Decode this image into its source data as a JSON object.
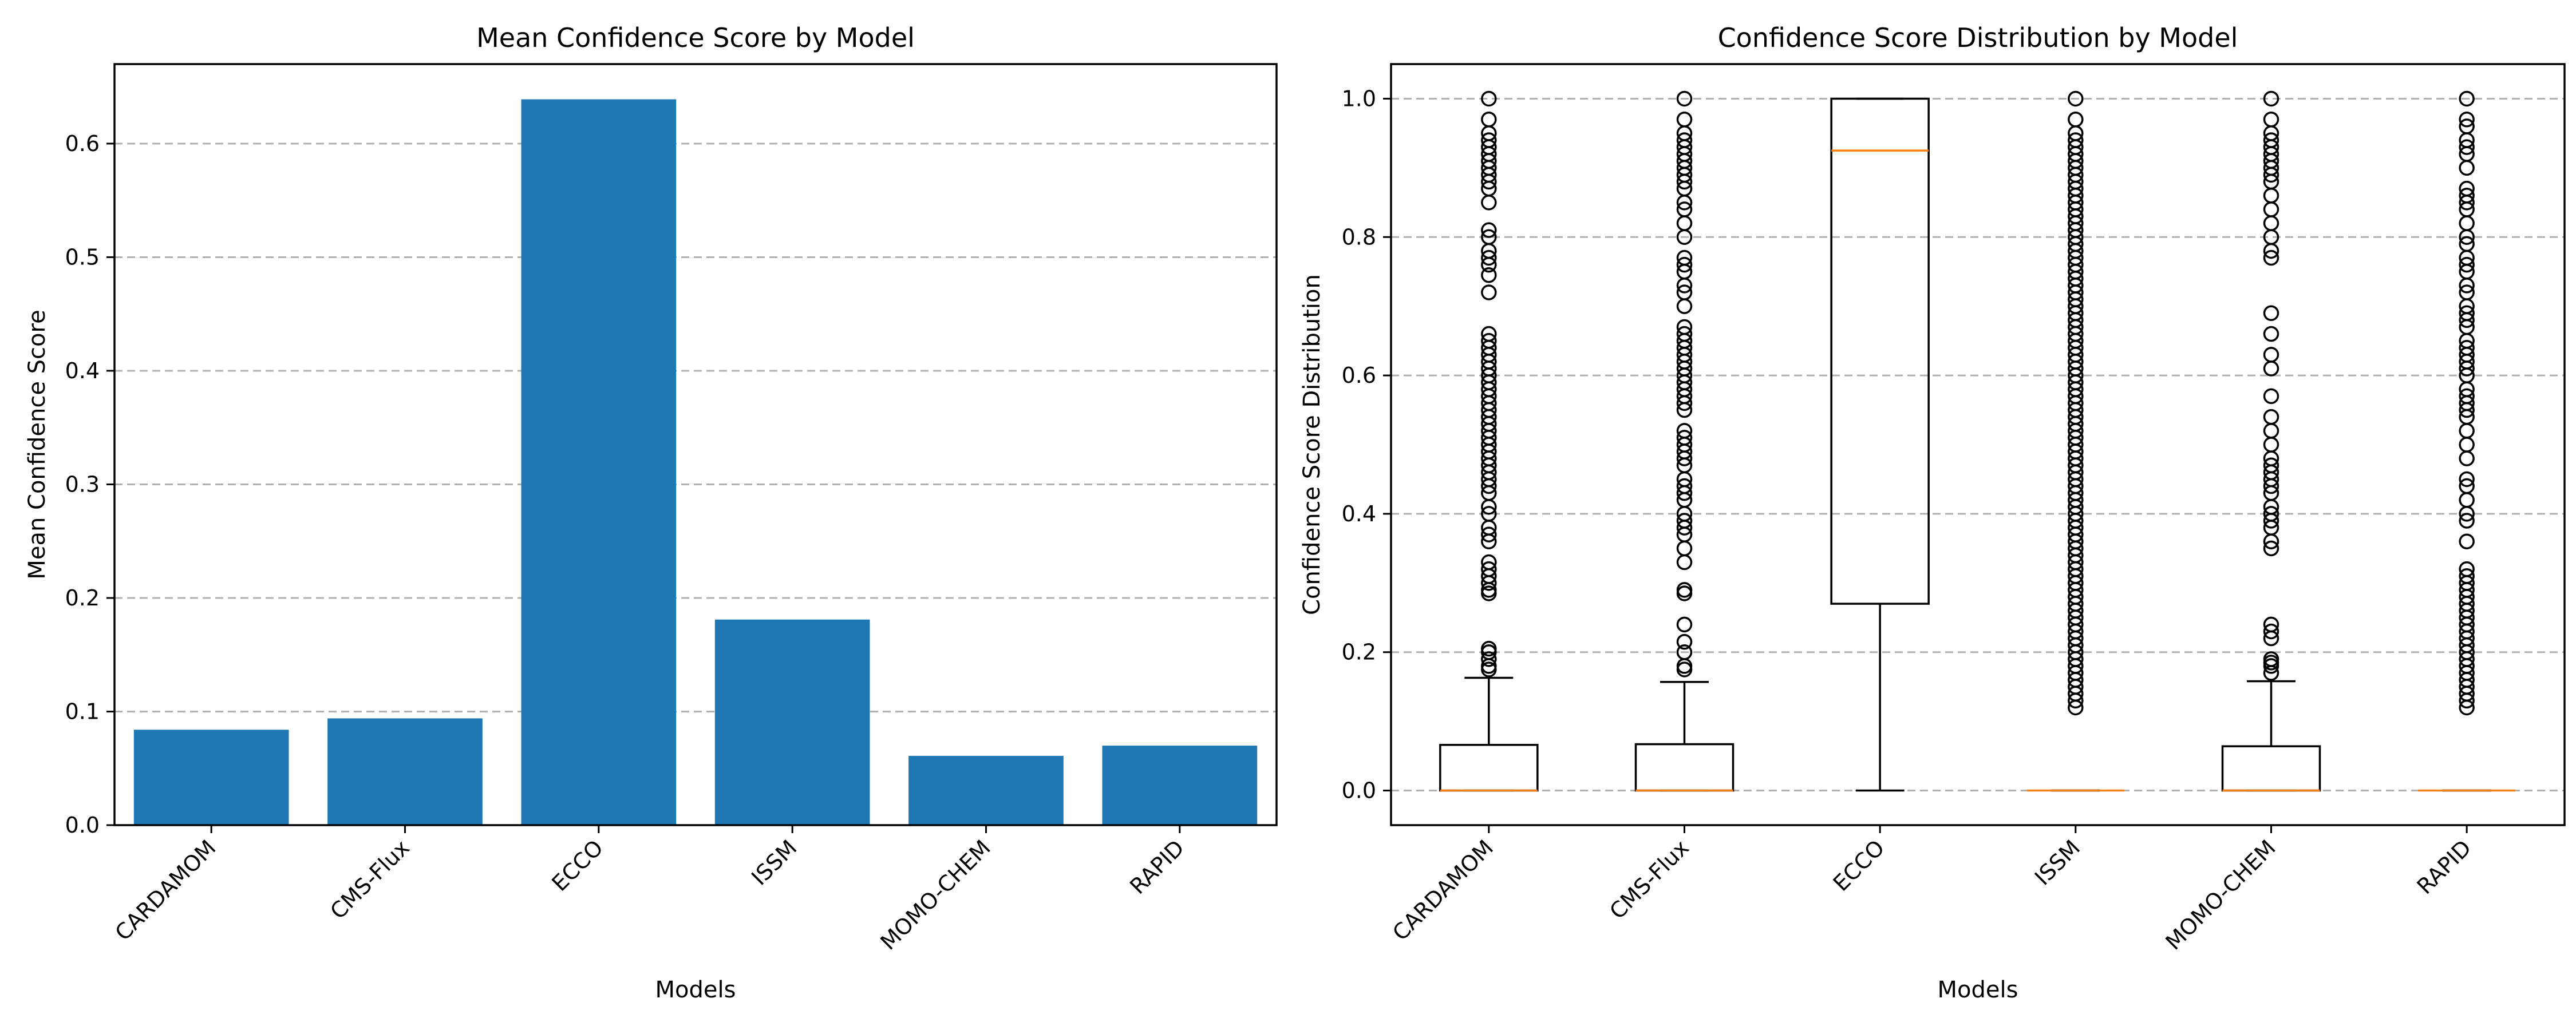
{
  "chart_data": [
    {
      "type": "bar",
      "title": "Mean Confidence Score by Model",
      "xlabel": "Models",
      "ylabel": "Mean Confidence Score",
      "categories": [
        "CARDAMOM",
        "CMS-Flux",
        "ECCO",
        "ISSM",
        "MOMO-CHEM",
        "RAPID"
      ],
      "values": [
        0.084,
        0.094,
        0.639,
        0.181,
        0.061,
        0.07
      ],
      "ylim": [
        0,
        0.67
      ],
      "yticks": [
        "0.0",
        "0.1",
        "0.2",
        "0.3",
        "0.4",
        "0.5",
        "0.6"
      ],
      "grid": "y-dashed",
      "bar_color": "#1f77b4"
    },
    {
      "type": "box",
      "title": "Confidence Score Distribution by Model",
      "xlabel": "Models",
      "ylabel": "Confidence Score Distribution",
      "categories": [
        "CARDAMOM",
        "CMS-Flux",
        "ECCO",
        "ISSM",
        "MOMO-CHEM",
        "RAPID"
      ],
      "ylim": [
        -0.05,
        1.05
      ],
      "yticks": [
        "0.0",
        "0.2",
        "0.4",
        "0.6",
        "0.8",
        "1.0"
      ],
      "grid": "y-dashed",
      "median_color": "#ff7f0e",
      "boxes": [
        {
          "q1": 0,
          "median": 0,
          "q3": 0.066,
          "whisker_low": 0,
          "whisker_high": 0.163,
          "outliers": [
            0.175,
            0.18,
            0.19,
            0.2,
            0.205,
            0.285,
            0.29,
            0.3,
            0.31,
            0.32,
            0.33,
            0.36,
            0.37,
            0.38,
            0.4,
            0.41,
            0.43,
            0.44,
            0.45,
            0.46,
            0.47,
            0.48,
            0.49,
            0.5,
            0.51,
            0.52,
            0.53,
            0.54,
            0.55,
            0.56,
            0.57,
            0.58,
            0.59,
            0.6,
            0.61,
            0.62,
            0.63,
            0.64,
            0.65,
            0.66,
            0.72,
            0.745,
            0.76,
            0.77,
            0.78,
            0.8,
            0.81,
            0.85,
            0.87,
            0.88,
            0.89,
            0.9,
            0.91,
            0.92,
            0.93,
            0.94,
            0.95,
            0.97,
            1.0
          ]
        },
        {
          "q1": 0,
          "median": 0,
          "q3": 0.067,
          "whisker_low": 0,
          "whisker_high": 0.157,
          "outliers": [
            0.175,
            0.18,
            0.2,
            0.215,
            0.24,
            0.285,
            0.29,
            0.33,
            0.35,
            0.37,
            0.38,
            0.39,
            0.4,
            0.42,
            0.43,
            0.44,
            0.45,
            0.47,
            0.48,
            0.49,
            0.5,
            0.51,
            0.52,
            0.55,
            0.56,
            0.57,
            0.58,
            0.59,
            0.6,
            0.61,
            0.62,
            0.63,
            0.64,
            0.65,
            0.66,
            0.67,
            0.7,
            0.72,
            0.73,
            0.75,
            0.76,
            0.77,
            0.8,
            0.82,
            0.84,
            0.85,
            0.87,
            0.88,
            0.89,
            0.9,
            0.91,
            0.92,
            0.93,
            0.94,
            0.95,
            0.97,
            1.0
          ]
        },
        {
          "q1": 0.27,
          "median": 0.925,
          "q3": 1.0,
          "whisker_low": 0,
          "whisker_high": 1.0,
          "outliers": []
        },
        {
          "q1": 0,
          "median": 0,
          "q3": 0,
          "whisker_low": 0,
          "whisker_high": 0,
          "outliers": [
            0.12,
            0.13,
            0.14,
            0.15,
            0.16,
            0.17,
            0.18,
            0.19,
            0.2,
            0.21,
            0.22,
            0.23,
            0.24,
            0.25,
            0.26,
            0.27,
            0.28,
            0.29,
            0.3,
            0.31,
            0.32,
            0.33,
            0.34,
            0.35,
            0.36,
            0.37,
            0.38,
            0.39,
            0.4,
            0.41,
            0.42,
            0.43,
            0.44,
            0.45,
            0.46,
            0.47,
            0.48,
            0.49,
            0.5,
            0.51,
            0.52,
            0.53,
            0.54,
            0.55,
            0.56,
            0.57,
            0.58,
            0.59,
            0.6,
            0.61,
            0.62,
            0.63,
            0.64,
            0.65,
            0.66,
            0.67,
            0.68,
            0.69,
            0.7,
            0.71,
            0.72,
            0.73,
            0.74,
            0.75,
            0.76,
            0.77,
            0.78,
            0.79,
            0.8,
            0.81,
            0.82,
            0.83,
            0.84,
            0.85,
            0.86,
            0.87,
            0.88,
            0.89,
            0.9,
            0.91,
            0.92,
            0.93,
            0.94,
            0.95,
            0.97,
            1.0
          ]
        },
        {
          "q1": 0,
          "median": 0,
          "q3": 0.064,
          "whisker_low": 0,
          "whisker_high": 0.158,
          "outliers": [
            0.17,
            0.18,
            0.185,
            0.19,
            0.22,
            0.23,
            0.24,
            0.35,
            0.36,
            0.38,
            0.39,
            0.4,
            0.41,
            0.43,
            0.44,
            0.45,
            0.46,
            0.47,
            0.48,
            0.5,
            0.52,
            0.54,
            0.57,
            0.61,
            0.63,
            0.66,
            0.69,
            0.77,
            0.78,
            0.8,
            0.82,
            0.84,
            0.86,
            0.88,
            0.89,
            0.9,
            0.91,
            0.92,
            0.93,
            0.94,
            0.95,
            0.97,
            1.0
          ]
        },
        {
          "q1": 0,
          "median": 0,
          "q3": 0,
          "whisker_low": 0,
          "whisker_high": 0,
          "outliers": [
            0.12,
            0.13,
            0.14,
            0.15,
            0.16,
            0.17,
            0.18,
            0.19,
            0.2,
            0.21,
            0.22,
            0.23,
            0.24,
            0.25,
            0.26,
            0.27,
            0.28,
            0.29,
            0.3,
            0.31,
            0.32,
            0.36,
            0.39,
            0.4,
            0.42,
            0.44,
            0.45,
            0.48,
            0.5,
            0.52,
            0.54,
            0.55,
            0.56,
            0.57,
            0.58,
            0.6,
            0.61,
            0.62,
            0.63,
            0.64,
            0.65,
            0.67,
            0.68,
            0.69,
            0.7,
            0.72,
            0.73,
            0.75,
            0.76,
            0.77,
            0.79,
            0.8,
            0.82,
            0.84,
            0.85,
            0.86,
            0.87,
            0.9,
            0.92,
            0.93,
            0.94,
            0.96,
            0.97,
            1.0
          ]
        }
      ]
    }
  ]
}
